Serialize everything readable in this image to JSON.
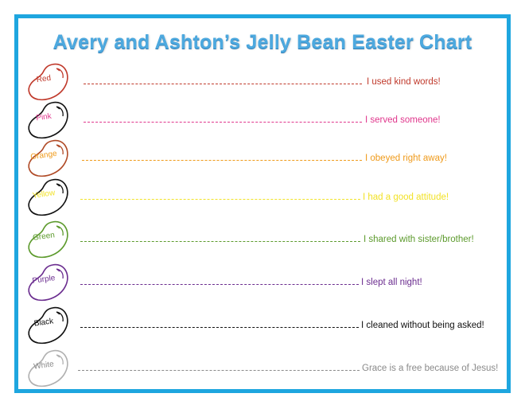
{
  "title": "Avery and Ashton’s Jelly Bean Easter Chart",
  "rows": [
    {
      "bean": "Red",
      "text": "I used kind words!",
      "color": "#c0392b",
      "outline": "#c0392b"
    },
    {
      "bean": "Pink",
      "text": "I served someone!",
      "color": "#e0368c",
      "outline": "#111111"
    },
    {
      "bean": "Orange",
      "text": "I obeyed right away!",
      "color": "#ef9a1a",
      "outline": "#b04a26"
    },
    {
      "bean": "Yellow",
      "text": "I had a good attitude!",
      "color": "#f2e227",
      "outline": "#111111"
    },
    {
      "bean": "Green",
      "text": "I shared with sister/brother!",
      "color": "#5c9a2c",
      "outline": "#5c9a2c"
    },
    {
      "bean": "Purple",
      "text": "I slept all night!",
      "color": "#6b2d8f",
      "outline": "#6b2d8f"
    },
    {
      "bean": "Black",
      "text": "I cleaned without being asked!",
      "color": "#111111",
      "outline": "#111111"
    },
    {
      "bean": "White",
      "text": "Grace is a free because of Jesus!",
      "color": "#8a8a8a",
      "outline": "#b0b0b0"
    }
  ]
}
